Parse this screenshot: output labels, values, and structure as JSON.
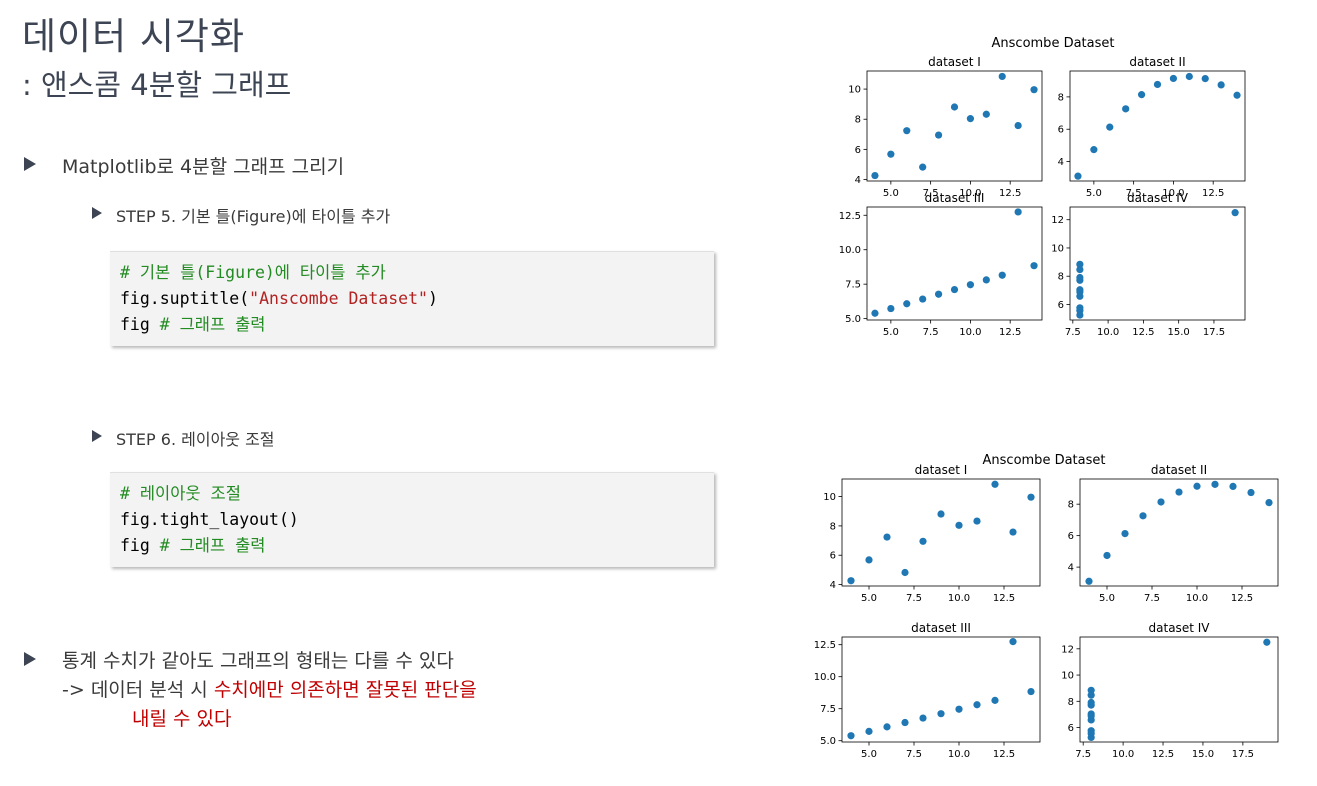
{
  "title": "데이터 시각화",
  "subtitle": ": 앤스콤 4분할 그래프",
  "bullets": {
    "b1": "Matplotlib로 4분할 그래프 그리기",
    "step5": "STEP 5. 기본 틀(Figure)에 타이틀 추가",
    "step6": "STEP 6. 레이아웃 조절",
    "b2_line1": "통계 수치가 같아도 그래프의 형태는 다를 수 있다",
    "b2_line2_prefix": "-> 데이터 분석 시 ",
    "b2_line2_red": "수치에만 의존하면 잘못된 판단을",
    "b2_line3_red": "내릴 수 있다"
  },
  "code5": {
    "l1": "# 기본 틀(Figure)에 타이틀 추가",
    "l2_pre": "fig.suptitle(",
    "l2_str": "\"Anscombe Dataset\"",
    "l2_post": ")",
    "l3_pre": "fig ",
    "l3_cm": "# 그래프 출력"
  },
  "code6": {
    "l1": "# 레이아웃 조절",
    "l2": "fig.tight_layout()",
    "l3_pre": "fig ",
    "l3_cm": "# 그래프 출력"
  },
  "colors": {
    "marker": "#1f77b4",
    "title": "#3d4453",
    "comment": "#228b22",
    "string": "#b22222",
    "highlight": "#c00000"
  },
  "chart_data": [
    {
      "type": "scatter",
      "title": "Anscombe Dataset",
      "layout": "default",
      "subplots": [
        {
          "title": "dataset I",
          "x": [
            10,
            8,
            13,
            9,
            11,
            14,
            6,
            4,
            12,
            7,
            5
          ],
          "y": [
            8.04,
            6.95,
            7.58,
            8.81,
            8.33,
            9.96,
            7.24,
            4.26,
            10.84,
            4.82,
            5.68
          ],
          "xlim": [
            3.5,
            14.5
          ],
          "ylim": [
            3.9,
            11.2
          ],
          "xticks": [
            5.0,
            7.5,
            10.0,
            12.5
          ],
          "yticks": [
            4,
            6,
            8,
            10
          ]
        },
        {
          "title": "dataset II",
          "x": [
            10,
            8,
            13,
            9,
            11,
            14,
            6,
            4,
            12,
            7,
            5
          ],
          "y": [
            9.14,
            8.14,
            8.74,
            8.77,
            9.26,
            8.1,
            6.13,
            3.1,
            9.13,
            7.26,
            4.74
          ],
          "xlim": [
            3.5,
            14.5
          ],
          "ylim": [
            2.8,
            9.6
          ],
          "xticks": [
            5.0,
            7.5,
            10.0,
            12.5
          ],
          "yticks": [
            4,
            6,
            8
          ]
        },
        {
          "title": "dataset III",
          "x": [
            10,
            8,
            13,
            9,
            11,
            14,
            6,
            4,
            12,
            7,
            5
          ],
          "y": [
            7.46,
            6.77,
            12.74,
            7.11,
            7.81,
            8.84,
            6.08,
            5.39,
            8.15,
            6.42,
            5.73
          ],
          "xlim": [
            3.5,
            14.5
          ],
          "ylim": [
            4.9,
            13.1
          ],
          "xticks": [
            5.0,
            7.5,
            10.0,
            12.5
          ],
          "yticks": [
            5.0,
            7.5,
            10.0,
            12.5
          ]
        },
        {
          "title": "dataset IV",
          "x": [
            8,
            8,
            8,
            8,
            8,
            8,
            8,
            19,
            8,
            8,
            8
          ],
          "y": [
            6.58,
            5.76,
            7.71,
            8.84,
            8.47,
            7.04,
            5.25,
            12.5,
            5.56,
            7.91,
            6.89
          ],
          "xlim": [
            7.3,
            19.7
          ],
          "ylim": [
            4.9,
            12.9
          ],
          "xticks": [
            7.5,
            10.0,
            12.5,
            15.0,
            17.5
          ],
          "yticks": [
            6,
            8,
            10,
            12
          ]
        }
      ]
    },
    {
      "type": "scatter",
      "title": "Anscombe Dataset",
      "layout": "tight",
      "subplots": [
        {
          "title": "dataset I",
          "x": [
            10,
            8,
            13,
            9,
            11,
            14,
            6,
            4,
            12,
            7,
            5
          ],
          "y": [
            8.04,
            6.95,
            7.58,
            8.81,
            8.33,
            9.96,
            7.24,
            4.26,
            10.84,
            4.82,
            5.68
          ],
          "xlim": [
            3.5,
            14.5
          ],
          "ylim": [
            3.9,
            11.2
          ],
          "xticks": [
            5.0,
            7.5,
            10.0,
            12.5
          ],
          "yticks": [
            4,
            6,
            8,
            10
          ]
        },
        {
          "title": "dataset II",
          "x": [
            10,
            8,
            13,
            9,
            11,
            14,
            6,
            4,
            12,
            7,
            5
          ],
          "y": [
            9.14,
            8.14,
            8.74,
            8.77,
            9.26,
            8.1,
            6.13,
            3.1,
            9.13,
            7.26,
            4.74
          ],
          "xlim": [
            3.5,
            14.5
          ],
          "ylim": [
            2.8,
            9.6
          ],
          "xticks": [
            5.0,
            7.5,
            10.0,
            12.5
          ],
          "yticks": [
            4,
            6,
            8
          ]
        },
        {
          "title": "dataset III",
          "x": [
            10,
            8,
            13,
            9,
            11,
            14,
            6,
            4,
            12,
            7,
            5
          ],
          "y": [
            7.46,
            6.77,
            12.74,
            7.11,
            7.81,
            8.84,
            6.08,
            5.39,
            8.15,
            6.42,
            5.73
          ],
          "xlim": [
            3.5,
            14.5
          ],
          "ylim": [
            4.9,
            13.1
          ],
          "xticks": [
            5.0,
            7.5,
            10.0,
            12.5
          ],
          "yticks": [
            5.0,
            7.5,
            10.0,
            12.5
          ]
        },
        {
          "title": "dataset IV",
          "x": [
            8,
            8,
            8,
            8,
            8,
            8,
            8,
            19,
            8,
            8,
            8
          ],
          "y": [
            6.58,
            5.76,
            7.71,
            8.84,
            8.47,
            7.04,
            5.25,
            12.5,
            5.56,
            7.91,
            6.89
          ],
          "xlim": [
            7.3,
            19.7
          ],
          "ylim": [
            4.9,
            12.9
          ],
          "xticks": [
            7.5,
            10.0,
            12.5,
            15.0,
            17.5
          ],
          "yticks": [
            6,
            8,
            10,
            12
          ]
        }
      ]
    }
  ]
}
